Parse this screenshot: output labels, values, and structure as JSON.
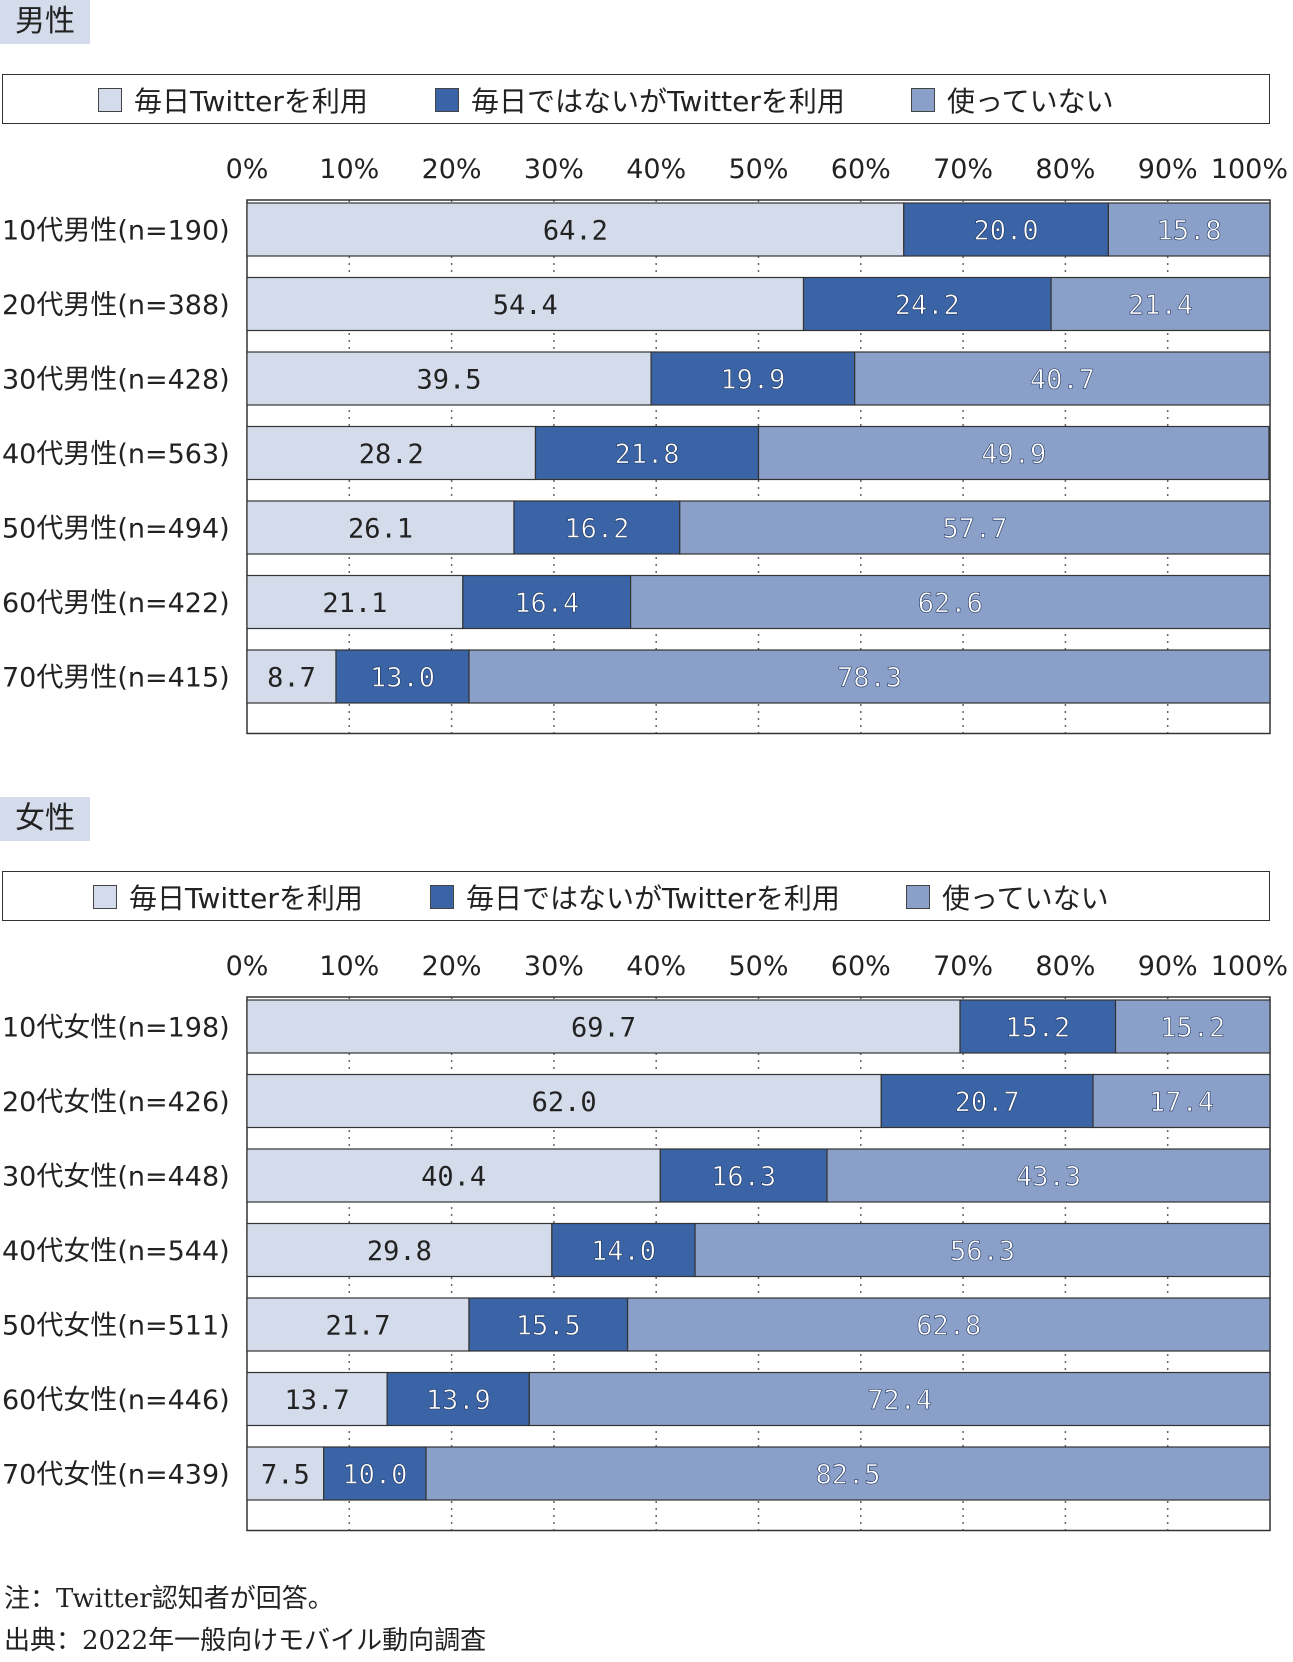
{
  "colors": {
    "daily": "#d4dceb",
    "not_daily": "#3a64a5",
    "not_using": "#8aa0c8",
    "title_bg": "#d4dceb",
    "border": "#333333"
  },
  "legend": [
    "毎日Twitterを利用",
    "毎日ではないがTwitterを利用",
    "使っていない"
  ],
  "notes": {
    "note": "注：Twitter認知者が回答。",
    "source": "出典：2022年一般向けモバイル動向調査"
  },
  "chart_data": [
    {
      "type": "bar",
      "orientation": "horizontal",
      "stacked": true,
      "title": "男性",
      "categories": [
        "10代男性(n=190)",
        "20代男性(n=388)",
        "30代男性(n=428)",
        "40代男性(n=563)",
        "50代男性(n=494)",
        "60代男性(n=422)",
        "70代男性(n=415)"
      ],
      "series": [
        {
          "name": "毎日Twitterを利用",
          "values": [
            64.2,
            54.4,
            39.5,
            28.2,
            26.1,
            21.1,
            8.7
          ]
        },
        {
          "name": "毎日ではないがTwitterを利用",
          "values": [
            20.0,
            24.2,
            19.9,
            21.8,
            16.2,
            16.4,
            13.0
          ]
        },
        {
          "name": "使っていない",
          "values": [
            15.8,
            21.4,
            40.7,
            49.9,
            57.7,
            62.6,
            78.3
          ]
        }
      ],
      "xticks": [
        "0%",
        "10%",
        "20%",
        "30%",
        "40%",
        "50%",
        "60%",
        "70%",
        "80%",
        "90%",
        "100%"
      ],
      "xlim": [
        0,
        100
      ],
      "grid": true,
      "legend_position": "top"
    },
    {
      "type": "bar",
      "orientation": "horizontal",
      "stacked": true,
      "title": "女性",
      "categories": [
        "10代女性(n=198)",
        "20代女性(n=426)",
        "30代女性(n=448)",
        "40代女性(n=544)",
        "50代女性(n=511)",
        "60代女性(n=446)",
        "70代女性(n=439)"
      ],
      "series": [
        {
          "name": "毎日Twitterを利用",
          "values": [
            69.7,
            62.0,
            40.4,
            29.8,
            21.7,
            13.7,
            7.5
          ]
        },
        {
          "name": "毎日ではないがTwitterを利用",
          "values": [
            15.2,
            20.7,
            16.3,
            14.0,
            15.5,
            13.9,
            10.0
          ]
        },
        {
          "name": "使っていない",
          "values": [
            15.2,
            17.4,
            43.3,
            56.3,
            62.8,
            72.4,
            82.5
          ]
        }
      ],
      "xticks": [
        "0%",
        "10%",
        "20%",
        "30%",
        "40%",
        "50%",
        "60%",
        "70%",
        "80%",
        "90%",
        "100%"
      ],
      "xlim": [
        0,
        100
      ],
      "grid": true,
      "legend_position": "top"
    }
  ]
}
